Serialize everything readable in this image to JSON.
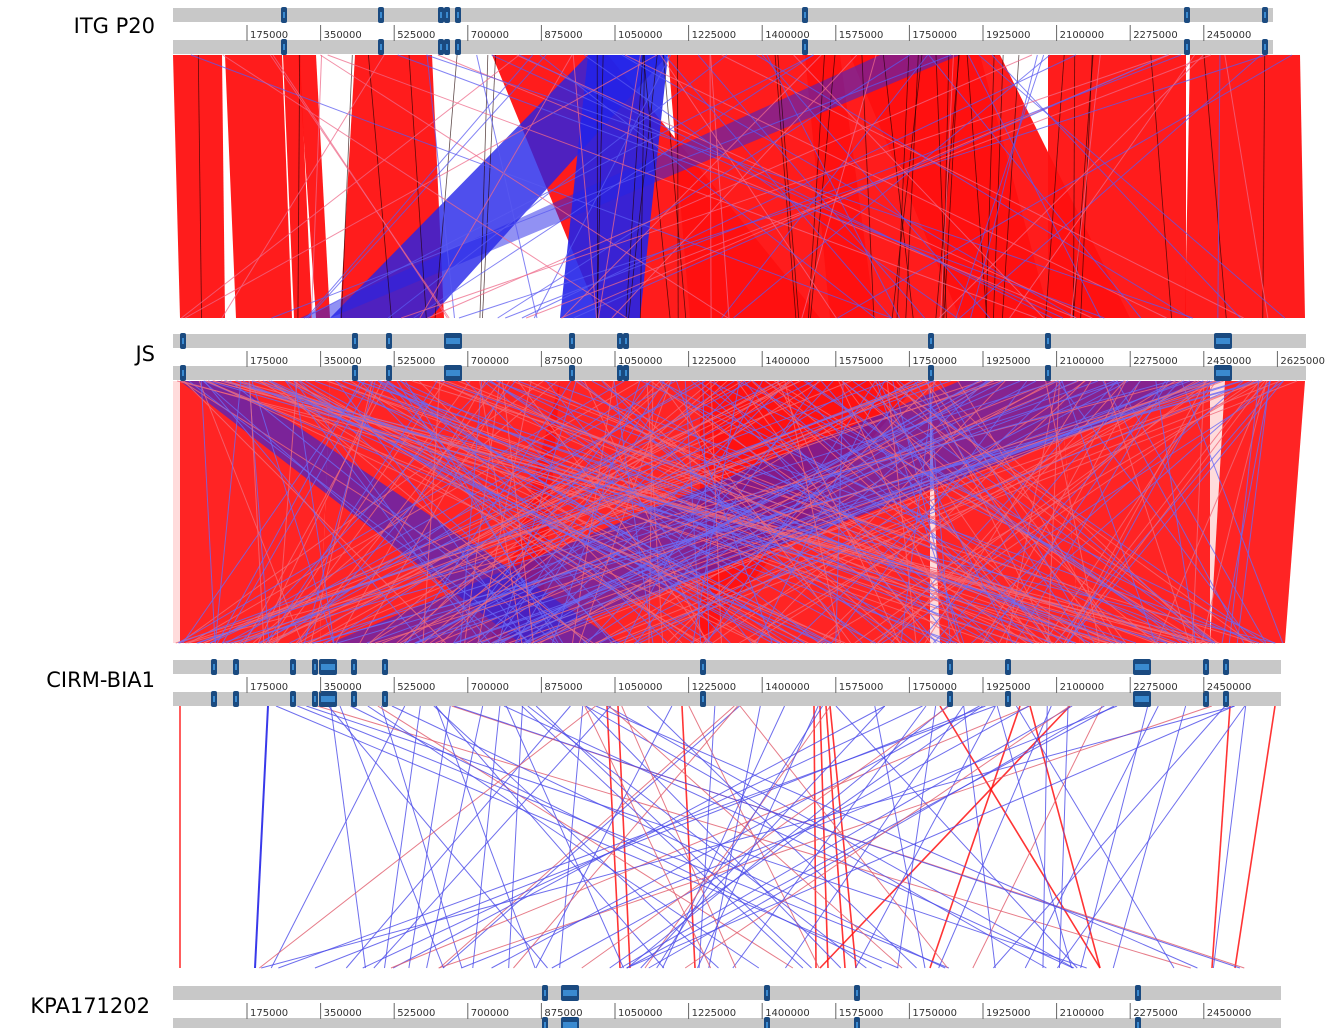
{
  "genomes": [
    {
      "name": "ITG P20",
      "last_tick": "2450000"
    },
    {
      "name": "JS",
      "last_tick": "2625000"
    },
    {
      "name": "CIRM-BIA1",
      "last_tick": "2450000"
    },
    {
      "name": "KPA171202",
      "last_tick": "2450000"
    }
  ],
  "tick_labels": [
    "175000",
    "350000",
    "525000",
    "700000",
    "875000",
    "1050000",
    "1225000",
    "1400000",
    "1575000",
    "1750000",
    "1925000",
    "2100000",
    "2275000",
    "2450000",
    "2625000"
  ],
  "colors": {
    "forward_match": "#ff1010",
    "reverse_match": "#2323e8",
    "track": "#c8c8c8",
    "feature_block": "#1a4a80",
    "feature_highlight": "#3a8ad0"
  }
}
